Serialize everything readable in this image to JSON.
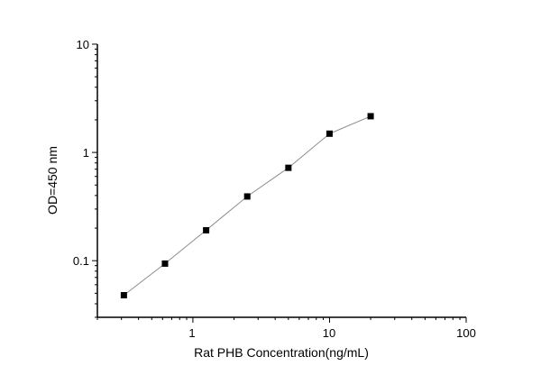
{
  "chart_data": {
    "type": "line",
    "title": "",
    "xlabel": "Rat PHB Concentration(ng/mL)",
    "ylabel": "OD=450 nm",
    "xscale": "log",
    "yscale": "log",
    "xlim": [
      0.2,
      100
    ],
    "ylim": [
      0.03,
      10
    ],
    "xticks": [
      "1",
      "10",
      "100"
    ],
    "yticks": [
      "0.1",
      "1",
      "10"
    ],
    "grid": false,
    "marker": "square",
    "colors": {
      "line": "#8c8c8c",
      "marker": "#000000",
      "axis": "#000000"
    },
    "series": [
      {
        "x": [
          0.3125,
          0.625,
          1.25,
          2.5,
          5,
          10,
          20
        ],
        "y": [
          0.048,
          0.094,
          0.191,
          0.392,
          0.721,
          1.49,
          2.16
        ]
      }
    ]
  }
}
